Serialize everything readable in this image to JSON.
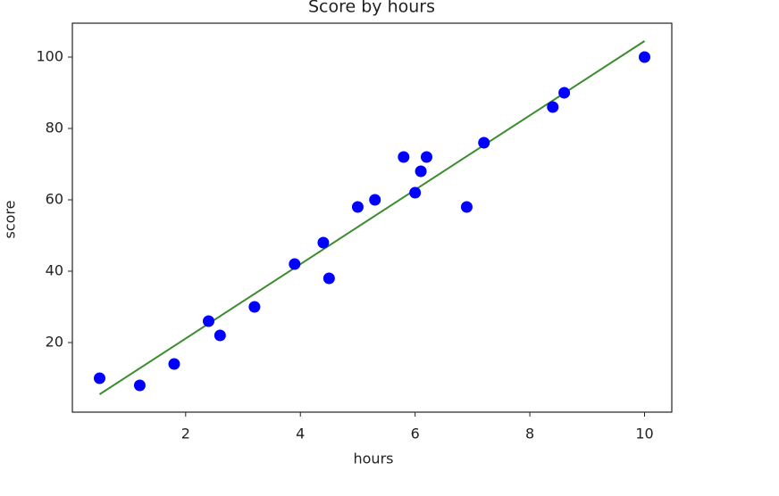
{
  "chart_data": {
    "type": "scatter",
    "title": "Score by hours",
    "x_label": "hours",
    "y_label": "score",
    "points": {
      "color": "#0000ff",
      "x": [
        0.5,
        1.2,
        1.8,
        2.4,
        2.6,
        3.2,
        3.9,
        4.4,
        4.5,
        5.0,
        5.3,
        5.8,
        6.0,
        6.1,
        6.2,
        6.9,
        7.2,
        8.4,
        8.6,
        10
      ],
      "values": [
        10,
        8,
        14,
        26,
        22,
        30,
        42,
        48,
        38,
        58,
        60,
        72,
        62,
        68,
        72,
        58,
        76,
        86,
        90,
        100
      ]
    },
    "fit": {
      "color": "#3c8d2f",
      "x": [
        0.5,
        10
      ],
      "values": [
        5.5,
        104.5
      ]
    },
    "xlim": [
      0.025,
      10.475
    ],
    "ylim": [
      0.5,
      109.5
    ],
    "xticks": [
      2,
      4,
      6,
      8,
      10
    ],
    "yticks": [
      20,
      40,
      60,
      80,
      100
    ],
    "grid": false
  }
}
